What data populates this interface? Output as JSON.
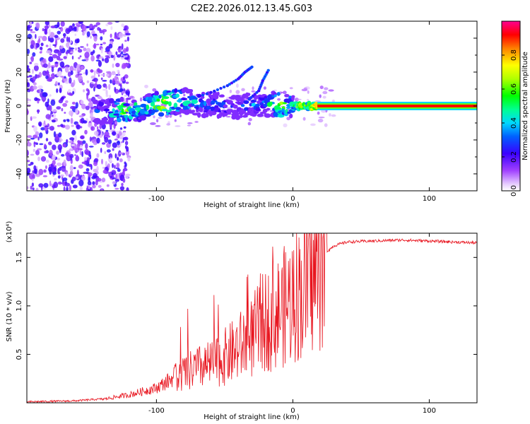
{
  "title": "C2E2.2026.012.13.45.G03",
  "chart_data": [
    {
      "type": "heatmap",
      "name": "spectrogram",
      "xlabel": "Height of straight line (km)",
      "ylabel": "Frequency (Hz)",
      "xlim": [
        -195,
        135
      ],
      "ylim": [
        -50,
        50
      ],
      "xticks": [
        -100,
        0,
        100
      ],
      "yticks": [
        -40,
        -20,
        0,
        20,
        40
      ],
      "colorbar": {
        "label": "Normalized spectral amplitude",
        "range": [
          0,
          1
        ],
        "ticks": [
          0.0,
          0.2,
          0.4,
          0.6,
          0.8
        ]
      },
      "ridge": [
        {
          "x": -140,
          "f": -3,
          "amp": 0.45
        },
        {
          "x": -125,
          "f": -3,
          "amp": 0.72
        },
        {
          "x": -110,
          "f": -1,
          "amp": 0.6
        },
        {
          "x": -95,
          "f": 2,
          "amp": 0.85
        },
        {
          "x": -80,
          "f": 3,
          "amp": 0.55
        },
        {
          "x": -65,
          "f": 1,
          "amp": 0.45
        },
        {
          "x": -50,
          "f": 0,
          "amp": 0.4
        },
        {
          "x": -35,
          "f": 0,
          "amp": 0.4
        },
        {
          "x": -20,
          "f": 1,
          "amp": 0.45
        },
        {
          "x": -10,
          "f": 1,
          "amp": 0.82
        },
        {
          "x": 0,
          "f": 0,
          "amp": 0.5
        },
        {
          "x": 5,
          "f": 0,
          "amp": 0.88
        },
        {
          "x": 10,
          "f": 0,
          "amp": 0.7
        },
        {
          "x": 20,
          "f": 0,
          "amp": 0.95
        },
        {
          "x": 135,
          "f": 0,
          "amp": 0.95
        }
      ],
      "branches": [
        [
          [
            -75,
            4
          ],
          [
            -60,
            8
          ],
          [
            -48,
            12
          ],
          [
            -40,
            16
          ],
          [
            -35,
            20
          ],
          [
            -30,
            23
          ]
        ],
        [
          [
            -32,
            4
          ],
          [
            -25,
            9
          ],
          [
            -22,
            15
          ],
          [
            -18,
            21
          ]
        ]
      ]
    },
    {
      "type": "line",
      "name": "snr",
      "xlabel": "Height of straight line (km)",
      "ylabel": "SNR (10 * v/v)",
      "scale_label": "(x10⁴)",
      "xlim": [
        -195,
        135
      ],
      "ylim": [
        0,
        1.75
      ],
      "xticks": [
        -100,
        0,
        100
      ],
      "yticks": [
        0.5,
        1.0,
        1.5
      ],
      "color": "#e8141e",
      "envelope": [
        {
          "x": -195,
          "v": 0.0
        },
        {
          "x": -160,
          "v": 0.01
        },
        {
          "x": -140,
          "v": 0.03
        },
        {
          "x": -120,
          "v": 0.07
        },
        {
          "x": -100,
          "v": 0.13
        },
        {
          "x": -90,
          "v": 0.2
        },
        {
          "x": -80,
          "v": 0.32
        },
        {
          "x": -70,
          "v": 0.38
        },
        {
          "x": -60,
          "v": 0.42
        },
        {
          "x": -50,
          "v": 0.5
        },
        {
          "x": -40,
          "v": 0.6
        },
        {
          "x": -30,
          "v": 0.72
        },
        {
          "x": -20,
          "v": 0.9
        },
        {
          "x": -10,
          "v": 1.0
        },
        {
          "x": 0,
          "v": 1.15
        },
        {
          "x": 10,
          "v": 1.3
        },
        {
          "x": 20,
          "v": 1.5
        },
        {
          "x": 30,
          "v": 1.62
        },
        {
          "x": 40,
          "v": 1.66
        },
        {
          "x": 80,
          "v": 1.68
        },
        {
          "x": 135,
          "v": 1.65
        }
      ]
    }
  ]
}
